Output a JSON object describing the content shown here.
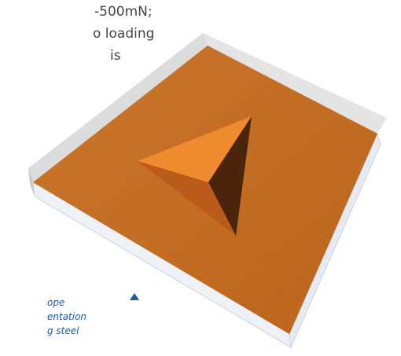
{
  "text_lines": [
    "-500mN;",
    "o loading",
    "is"
  ],
  "caption_lines": [
    "ope",
    "entation",
    "g steel"
  ]
}
